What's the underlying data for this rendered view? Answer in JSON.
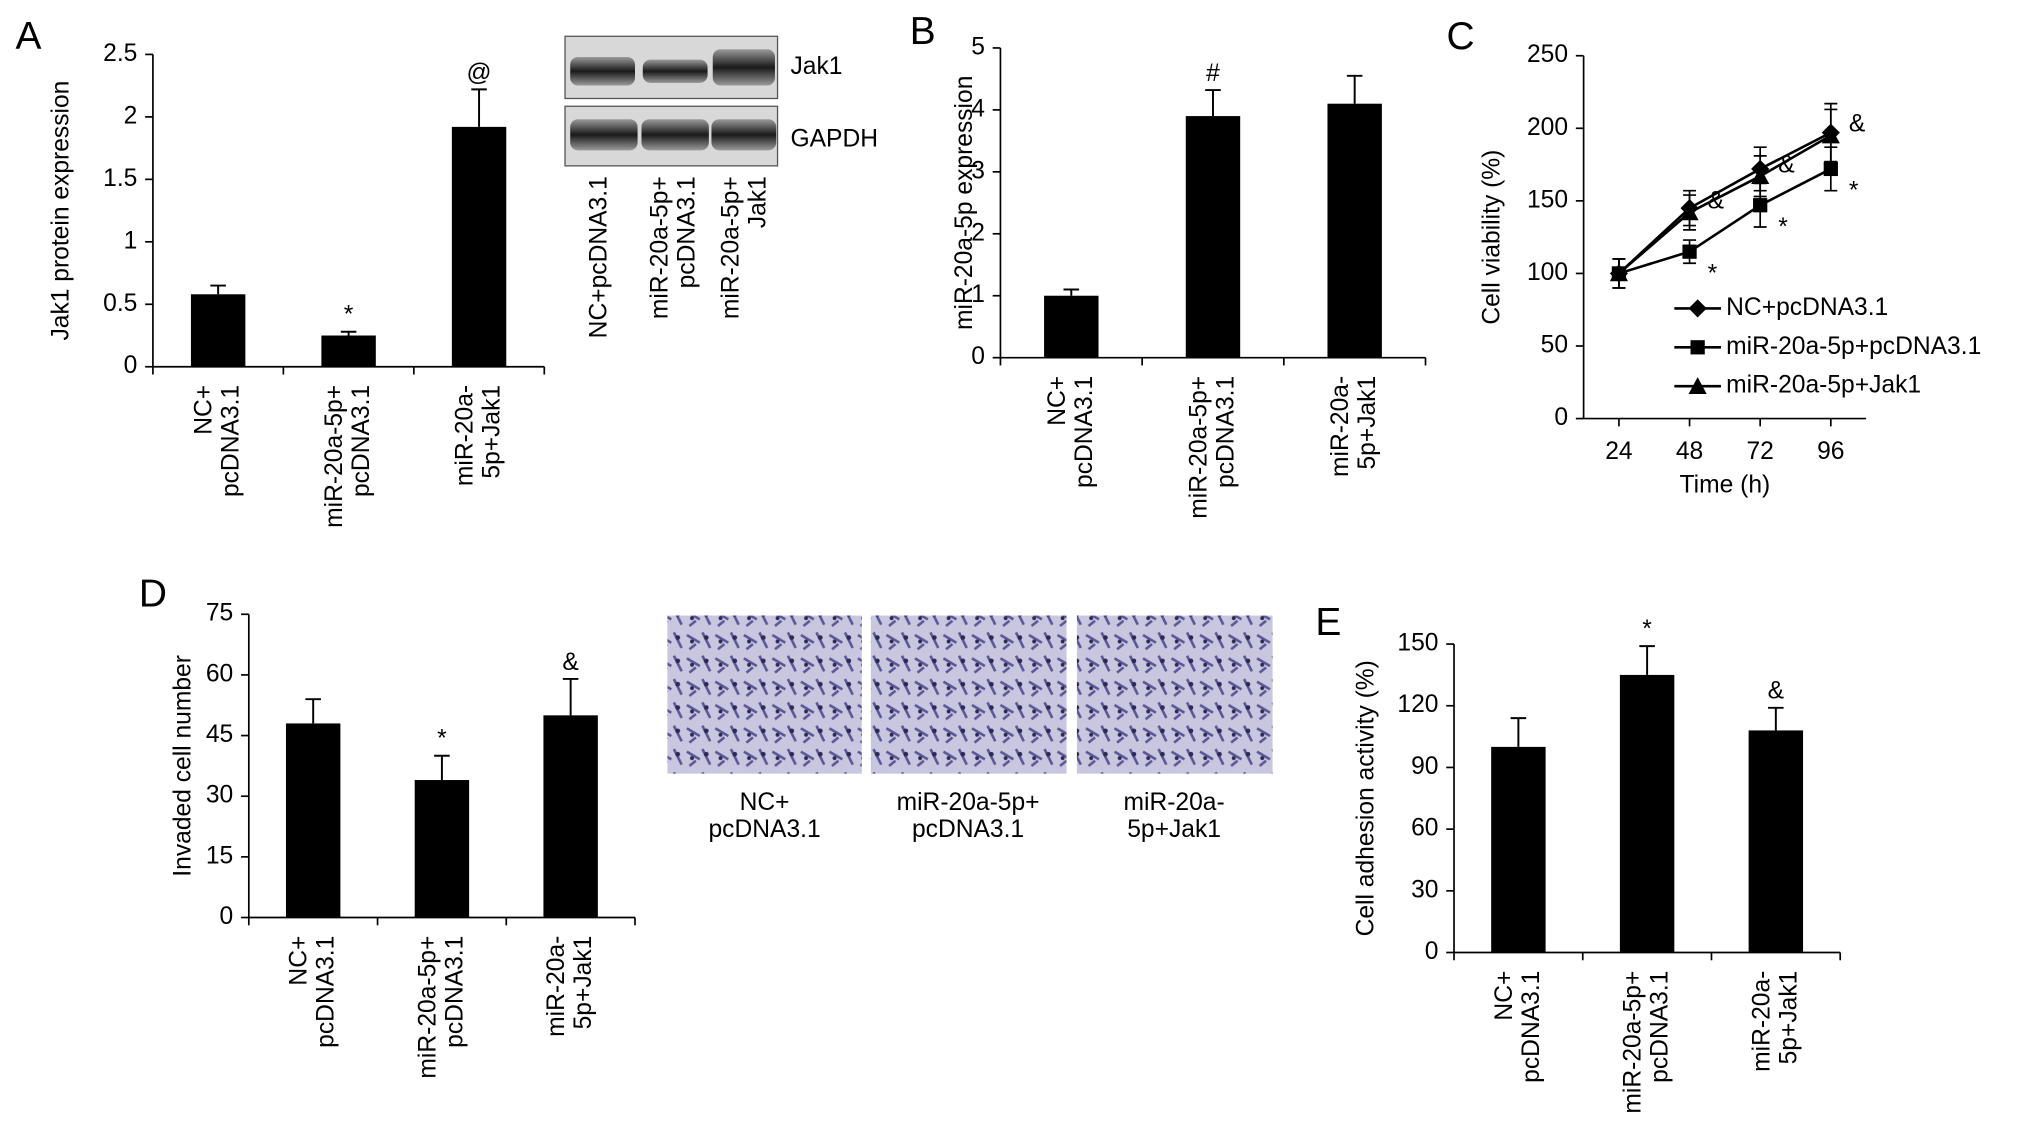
{
  "chart_data": [
    {
      "panel": "A",
      "type": "bar",
      "ylabel": "Jak1 protein expression",
      "color": "#000000",
      "categories": [
        "NC+\npcDNA3.1",
        "miR-20a-5p+\npcDNA3.1",
        "miR-20a-\n5p+Jak1"
      ],
      "values": [
        0.58,
        0.25,
        1.92
      ],
      "errors": [
        0.07,
        0.03,
        0.3
      ],
      "annotations": [
        null,
        "*",
        "@"
      ],
      "ylim": [
        0,
        2.5
      ],
      "yticks": [
        0,
        0.5,
        1,
        1.5,
        2,
        2.5
      ]
    },
    {
      "panel": "B",
      "type": "bar",
      "ylabel": "miR-20a-5p expression",
      "color": "#000000",
      "categories": [
        "NC+\npcDNA3.1",
        "miR-20a-5p+\npcDNA3.1",
        "miR-20a-\n5p+Jak1"
      ],
      "values": [
        1.0,
        3.9,
        4.1
      ],
      "errors": [
        0.1,
        0.42,
        0.45
      ],
      "annotations": [
        null,
        "#",
        null
      ],
      "ylim": [
        0,
        5
      ],
      "yticks": [
        0,
        1,
        2,
        3,
        4,
        5
      ]
    },
    {
      "panel": "C",
      "type": "line",
      "ylabel": "Cell viability (%)",
      "xlabel": "Time (h)",
      "x": [
        24,
        48,
        72,
        96
      ],
      "xlim": [
        12,
        108
      ],
      "xticks": [
        24,
        48,
        72,
        96
      ],
      "ylim": [
        0,
        250
      ],
      "yticks": [
        0,
        50,
        100,
        150,
        200,
        250
      ],
      "series": [
        {
          "name": "NC+pcDNA3.1",
          "color": "#000000",
          "marker": "diamond",
          "values": [
            100,
            145,
            172,
            197
          ],
          "errors": [
            10,
            12,
            15,
            20
          ],
          "annotations": [
            null,
            null,
            null,
            null
          ]
        },
        {
          "name": "miR-20a-5p+pcDNA3.1",
          "color": "#000000",
          "marker": "square",
          "values": [
            100,
            115,
            147,
            172
          ],
          "errors": [
            10,
            8,
            15,
            15
          ],
          "annotations": [
            null,
            "*",
            "*",
            "*"
          ]
        },
        {
          "name": "miR-20a-5p+Jak1",
          "color": "#000000",
          "marker": "triangle",
          "values": [
            100,
            142,
            167,
            195
          ],
          "errors": [
            10,
            12,
            14,
            18
          ],
          "annotations": [
            null,
            "&",
            "&",
            "&"
          ]
        }
      ]
    },
    {
      "panel": "D",
      "type": "bar",
      "ylabel": "Invaded cell number",
      "color": "#000000",
      "categories": [
        "NC+\npcDNA3.1",
        "miR-20a-5p+\npcDNA3.1",
        "miR-20a-\n5p+Jak1"
      ],
      "values": [
        48,
        34,
        50
      ],
      "errors": [
        6,
        6,
        9
      ],
      "annotations": [
        null,
        "*",
        "&"
      ],
      "ylim": [
        0,
        75
      ],
      "yticks": [
        0,
        15,
        30,
        45,
        60,
        75
      ]
    },
    {
      "panel": "E",
      "type": "bar",
      "ylabel": "Cell adhesion activity (%)",
      "color": "#000000",
      "categories": [
        "NC+\npcDNA3.1",
        "miR-20a-5p+\npcDNA3.1",
        "miR-20a-\n5p+Jak1"
      ],
      "values": [
        100,
        135,
        108
      ],
      "errors": [
        14,
        14,
        11
      ],
      "annotations": [
        null,
        "*",
        "&"
      ],
      "ylim": [
        0,
        150
      ],
      "yticks": [
        0,
        30,
        60,
        90,
        120,
        150
      ]
    }
  ],
  "blot": {
    "bands": [
      "Jak1",
      "GAPDH"
    ],
    "lanes": [
      "NC+pcDNA3.1",
      "miR-20a-5p+\npcDNA3.1",
      "miR-20a-5p+\nJak1"
    ]
  },
  "micrographs": {
    "captions": [
      "NC+\npcDNA3.1",
      "miR-20a-5p+\npcDNA3.1",
      "miR-20a-\n5p+Jak1"
    ]
  }
}
